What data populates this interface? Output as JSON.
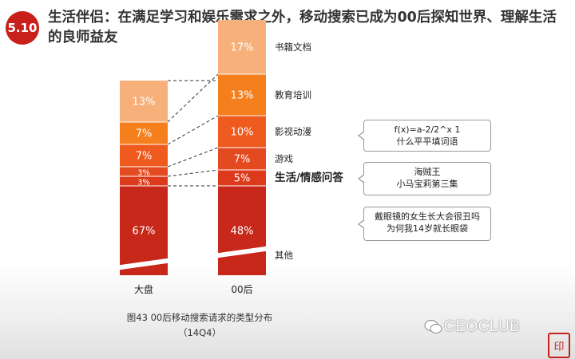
{
  "slide": {
    "badge": "5.10",
    "title": "生活伴侣：在满足学习和娱乐需求之外，移动搜索已成为00后探知世界、理解生活的良师益友"
  },
  "chart_data": {
    "type": "stacked_bar",
    "categories": [
      "大盘",
      "00后"
    ],
    "series_order_bottom_to_top": [
      "其他",
      "生活/情感问答",
      "游戏",
      "影视动漫",
      "教育培训",
      "书籍文档"
    ],
    "series": [
      {
        "name": "其他",
        "color": "#c8281a",
        "values": [
          67,
          48
        ],
        "labels": [
          "67%",
          "48%"
        ]
      },
      {
        "name": "生活/情感问答",
        "color": "#dc3a1a",
        "values": [
          3,
          5
        ],
        "labels": [
          "3%",
          "5%"
        ]
      },
      {
        "name": "游戏",
        "color": "#e34a20",
        "values": [
          3,
          7
        ],
        "labels": [
          "3%",
          "7%"
        ]
      },
      {
        "name": "影视动漫",
        "color": "#ef5a1e",
        "values": [
          7,
          10
        ],
        "labels": [
          "7%",
          "10%"
        ]
      },
      {
        "name": "教育培训",
        "color": "#f57f1c",
        "values": [
          7,
          13
        ],
        "labels": [
          "7%",
          "13%"
        ]
      },
      {
        "name": "书籍文档",
        "color": "#f8b07a",
        "values": [
          13,
          17
        ],
        "labels": [
          "13%",
          "17%"
        ]
      }
    ],
    "axis_break": true,
    "highlight_series": "生活/情感问答",
    "caption_line1": "图43 00后移动搜索请求的类型分布",
    "caption_line2": "（14Q4）"
  },
  "callouts": [
    {
      "series": "教育培训",
      "line1": "f(x)=a-2/2^x 1",
      "line2": "什么平平填词语"
    },
    {
      "series": "影视动漫",
      "line1": "海贼王",
      "line2": "小马宝莉第三集"
    },
    {
      "series": "生活/情感问答",
      "line1": "戴眼镜的女生长大会很丑吗",
      "line2": "为何我14岁就长眼袋"
    }
  ],
  "watermark": {
    "text": "CEOCLUB",
    "icon": "wechat-icon",
    "seal": "印"
  }
}
